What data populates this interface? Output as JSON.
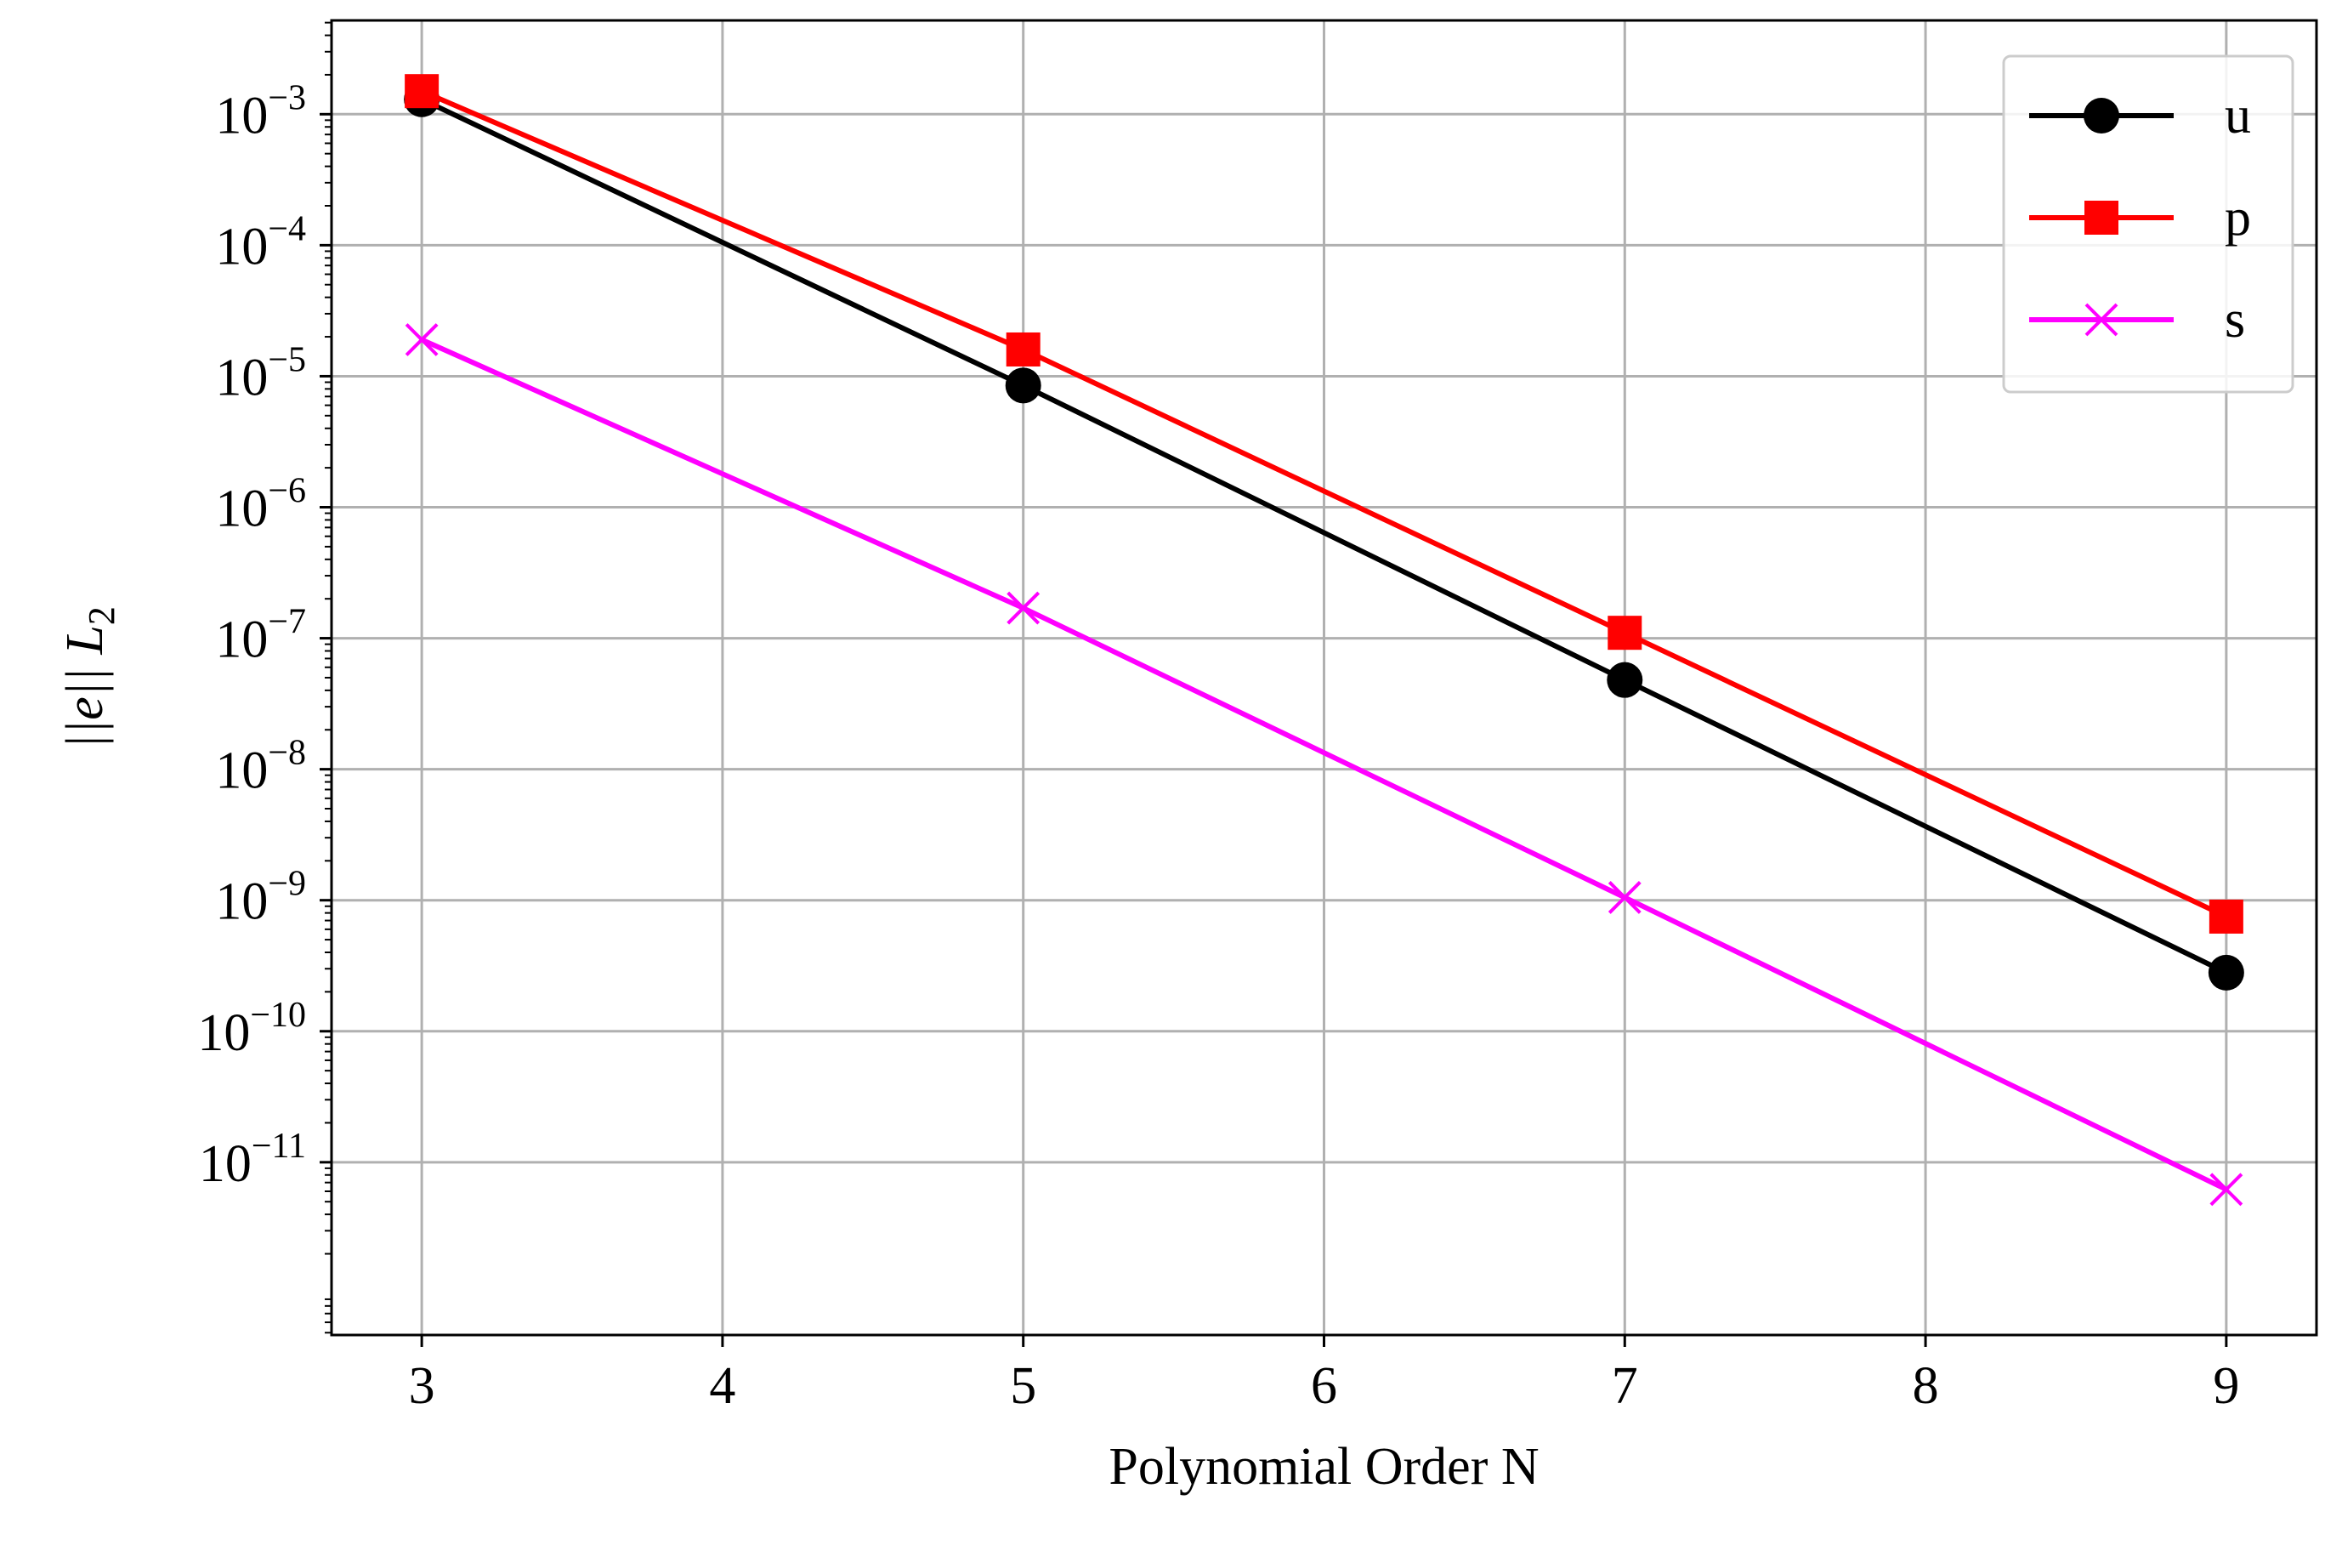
{
  "chart_data": {
    "type": "line",
    "title": "",
    "xlabel": "Polynomial Order N",
    "ylabel": "||e|| L",
    "ylabel_sub": "2",
    "x": [
      3,
      5,
      7,
      9
    ],
    "x_ticks": [
      3,
      4,
      5,
      6,
      7,
      8,
      9
    ],
    "xlim": [
      2.7,
      9.3
    ],
    "y_scale": "log",
    "ylim": [
      4.8e-13,
      0.0052
    ],
    "y_tick_exponents": [
      -3,
      -4,
      -5,
      -6,
      -7,
      -8,
      -9,
      -10,
      -11
    ],
    "y_tick_base": "10",
    "grid": true,
    "legend_position": "top-right",
    "series": [
      {
        "name": "u",
        "color": "#000000",
        "marker": "circle",
        "values": [
          0.0013,
          8.5e-06,
          4.8e-08,
          2.8e-10
        ]
      },
      {
        "name": "p",
        "color": "#ff0000",
        "marker": "square",
        "values": [
          0.0015,
          1.6e-05,
          1.1e-07,
          7.5e-10
        ]
      },
      {
        "name": "s",
        "color": "#ff00ff",
        "marker": "x",
        "values": [
          1.9e-05,
          1.7e-07,
          1.05e-09,
          6.2e-12
        ]
      }
    ]
  }
}
